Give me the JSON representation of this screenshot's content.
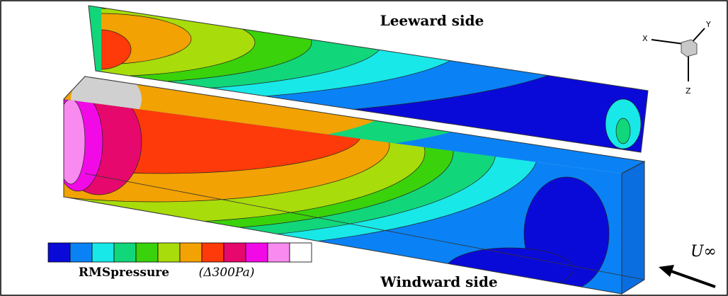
{
  "labels": {
    "top": "Leeward side",
    "bottom": "Windward side",
    "freestream": "U∞"
  },
  "colorbar": {
    "title": "RMSpressure",
    "unit": "(Δ300Pa)",
    "colors": [
      "#0a0ad8",
      "#0a82f5",
      "#19e8e8",
      "#12d67a",
      "#3ad20a",
      "#a8dc0a",
      "#f2a202",
      "#ff3a0a",
      "#e6086c",
      "#f20ae6",
      "#f88af0",
      "#ffffff"
    ]
  },
  "axes": {
    "x": "X",
    "y": "Y",
    "z": "Z"
  }
}
